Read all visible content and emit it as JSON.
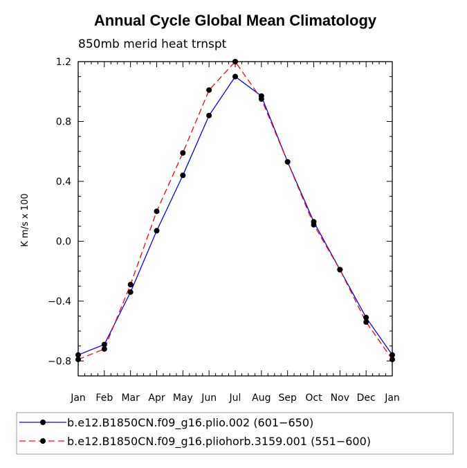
{
  "chart_data": {
    "type": "line",
    "title": "Annual Cycle Global Mean Climatology",
    "subtitle": "850mb merid heat trnspt",
    "xlabel": "",
    "ylabel": "K m/s x 100",
    "categories": [
      "Jan",
      "Feb",
      "Mar",
      "Apr",
      "May",
      "Jun",
      "Jul",
      "Aug",
      "Sep",
      "Oct",
      "Nov",
      "Dec",
      "Jan"
    ],
    "ylim": [
      -0.9,
      1.2
    ],
    "yticks": [
      -0.8,
      -0.4,
      0.0,
      0.4,
      0.8,
      1.2
    ],
    "ytick_labels": [
      "−0.8",
      "−0.4",
      "0.0",
      "0.4",
      "0.8",
      "1.2"
    ],
    "grid": false,
    "legend_position": "bottom",
    "series": [
      {
        "name": "b.e12.B1850CN.f09_g16.plio.002 (601−650)",
        "color": "#0000ff",
        "line_style": "solid",
        "values": [
          -0.76,
          -0.69,
          -0.34,
          0.07,
          0.44,
          0.84,
          1.1,
          0.97,
          0.53,
          0.13,
          -0.19,
          -0.51,
          -0.76
        ]
      },
      {
        "name": "b.e12.B1850CN.f09_g16.pliohorb.3159.001 (551−600)",
        "color": "#ff0000",
        "line_style": "dashed",
        "values": [
          -0.79,
          -0.72,
          -0.29,
          0.2,
          0.59,
          1.01,
          1.2,
          0.95,
          0.53,
          0.11,
          -0.19,
          -0.54,
          -0.79
        ]
      }
    ]
  }
}
